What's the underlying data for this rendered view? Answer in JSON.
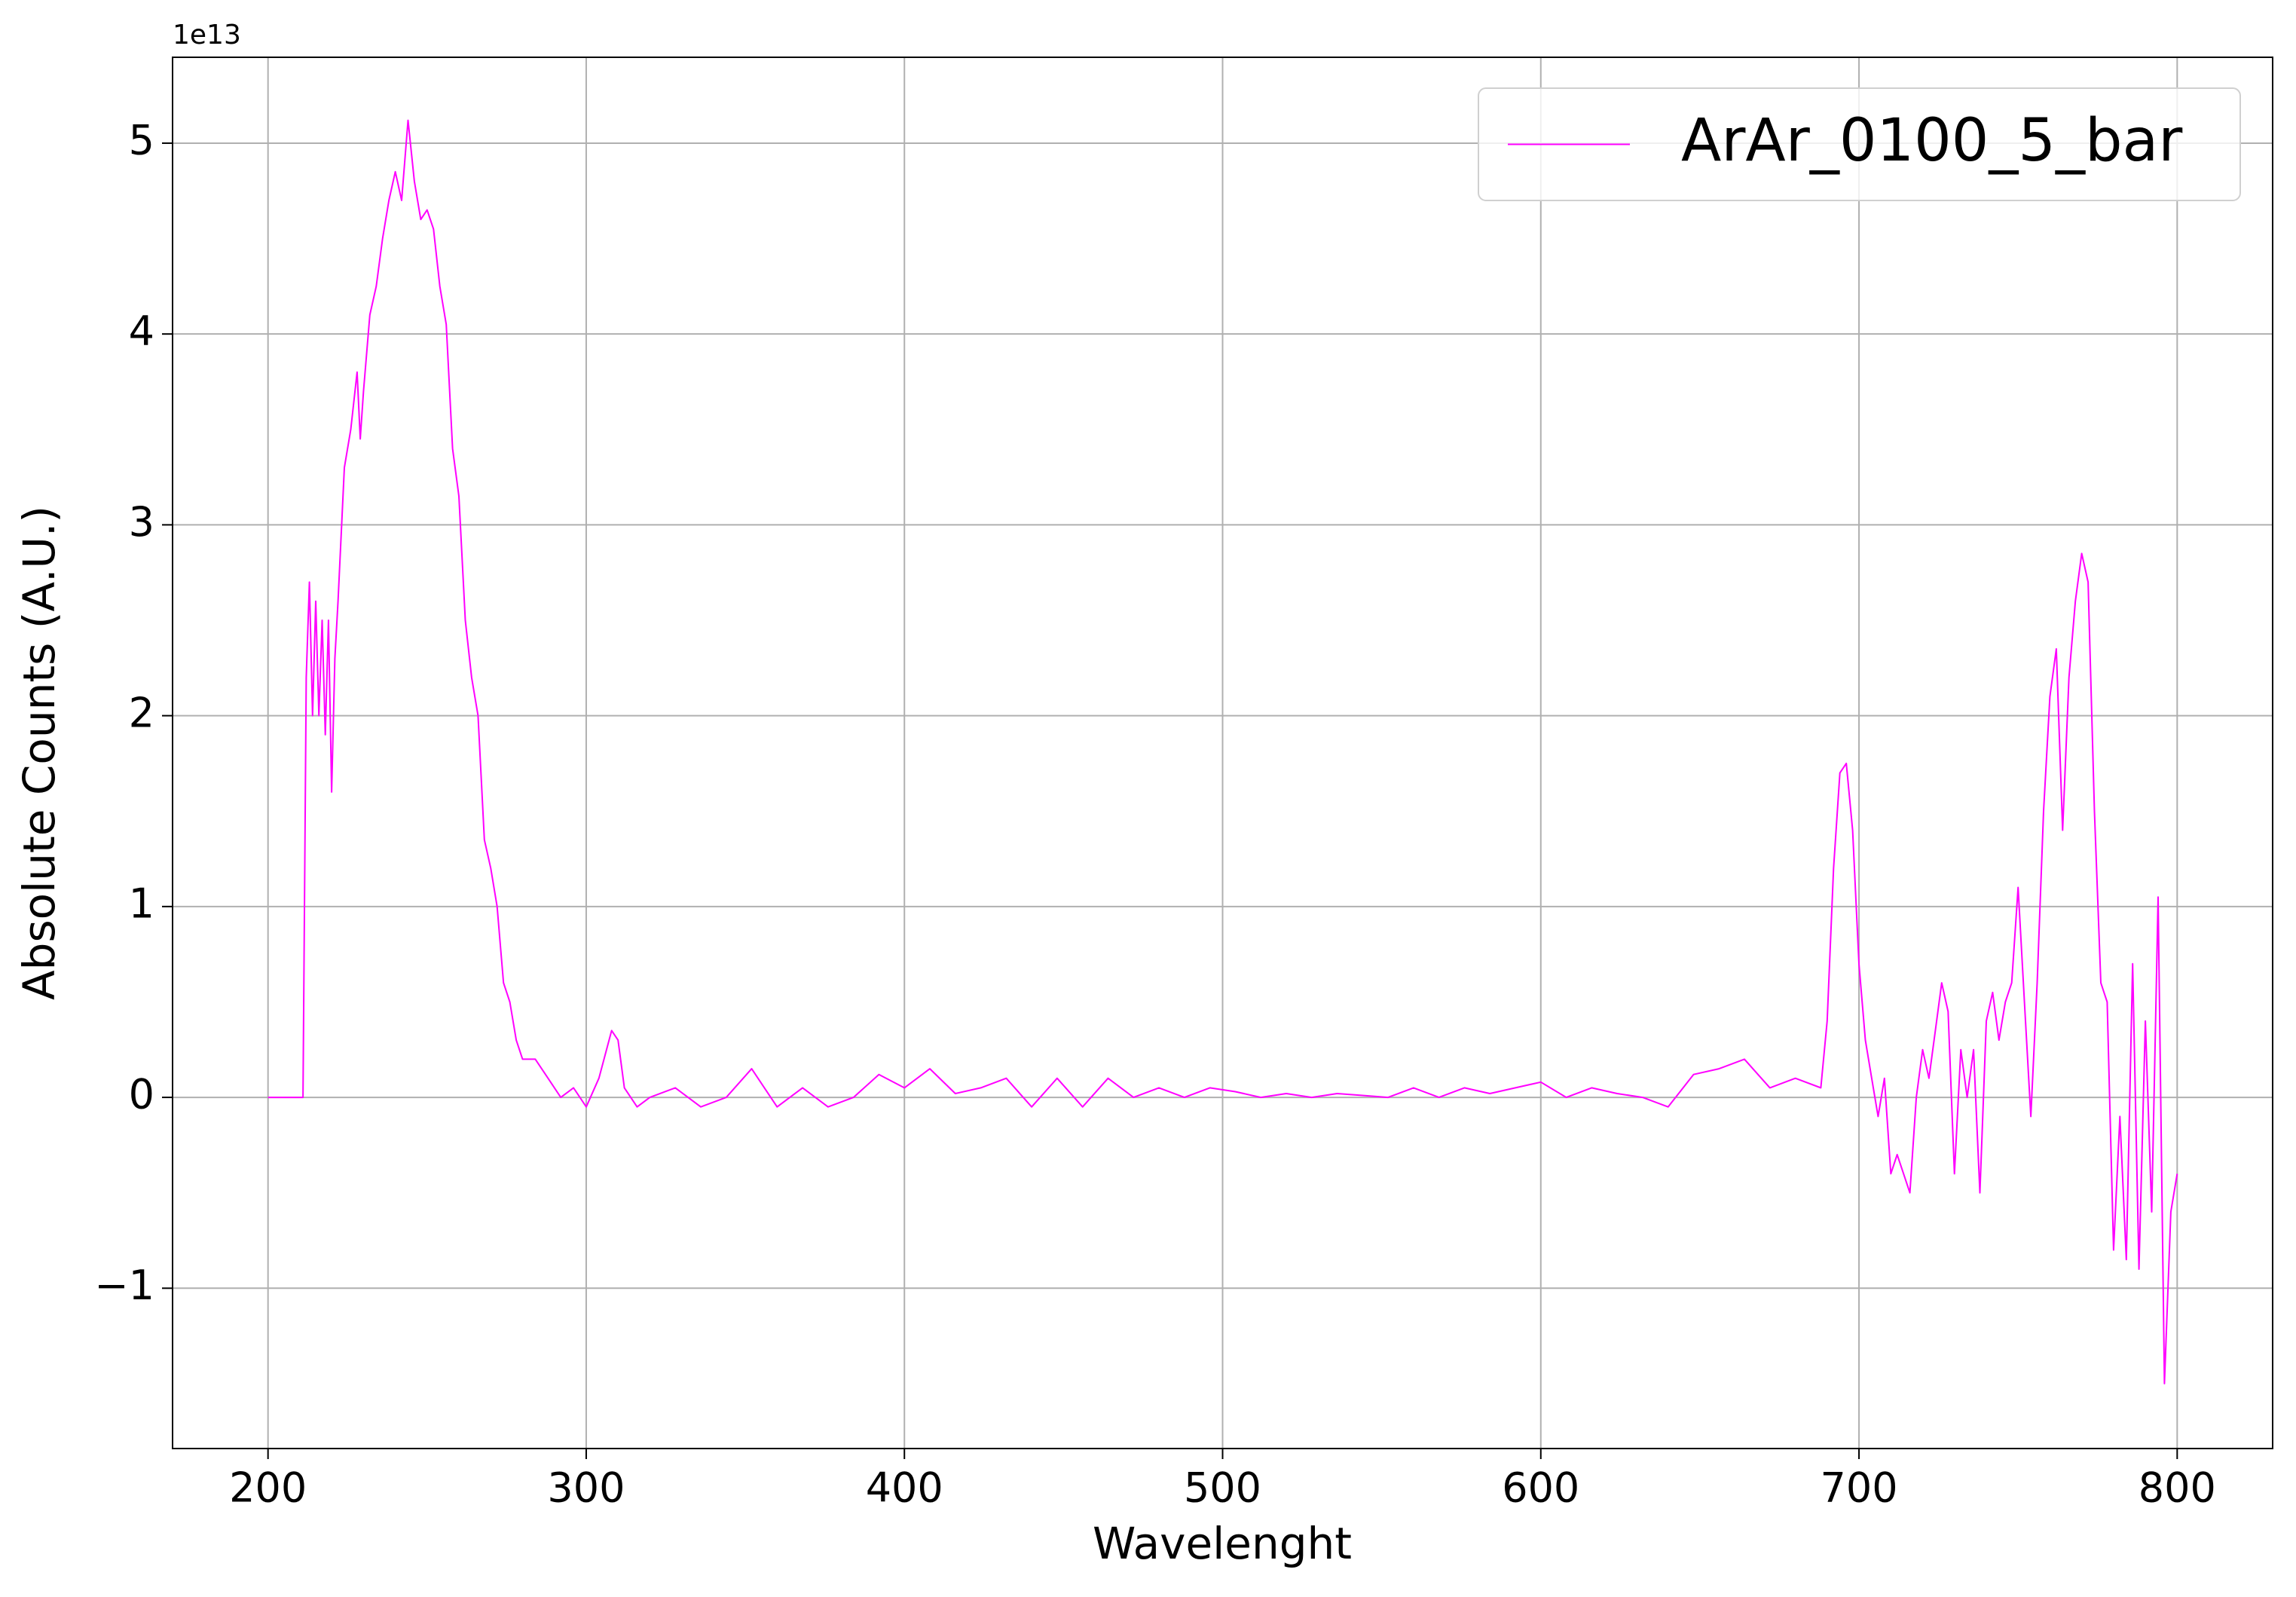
{
  "chart_data": {
    "type": "line",
    "xlabel": "Wavelenght",
    "ylabel": "Absolute Counts (A.U.)",
    "offset_text": "1e13",
    "xlim": [
      170,
      830
    ],
    "ylim": [
      -1.84,
      5.45
    ],
    "xticks": [
      200,
      300,
      400,
      500,
      600,
      700,
      800
    ],
    "yticks": [
      {
        "value": -1,
        "label": "−1"
      },
      0,
      1,
      2,
      3,
      4,
      5
    ],
    "grid": true,
    "legend": "upper right",
    "series": [
      {
        "name": "ArAr_0100_5_bar",
        "color": "#ff00ff",
        "x": [
          200,
          211,
          212,
          213,
          214,
          215,
          216,
          217,
          218,
          219,
          220,
          221,
          222,
          224,
          226,
          228,
          229,
          230,
          232,
          234,
          236,
          238,
          240,
          242,
          244,
          246,
          248,
          250,
          252,
          254,
          256,
          258,
          260,
          262,
          264,
          266,
          268,
          270,
          272,
          274,
          276,
          278,
          280,
          284,
          288,
          292,
          296,
          300,
          304,
          308,
          310,
          312,
          316,
          320,
          328,
          336,
          344,
          352,
          360,
          368,
          376,
          384,
          392,
          400,
          408,
          416,
          424,
          432,
          440,
          448,
          456,
          464,
          472,
          480,
          488,
          496,
          504,
          512,
          520,
          528,
          536,
          544,
          552,
          560,
          568,
          576,
          584,
          592,
          600,
          608,
          616,
          624,
          632,
          640,
          648,
          656,
          664,
          672,
          680,
          688,
          690,
          692,
          694,
          696,
          698,
          700,
          702,
          704,
          706,
          708,
          710,
          712,
          714,
          716,
          718,
          720,
          722,
          724,
          726,
          728,
          730,
          732,
          734,
          736,
          738,
          740,
          742,
          744,
          746,
          748,
          750,
          752,
          754,
          756,
          758,
          760,
          762,
          764,
          766,
          768,
          770,
          772,
          774,
          776,
          778,
          780,
          782,
          784,
          786,
          788,
          790,
          792,
          794,
          796,
          798,
          800
        ],
        "values": [
          0,
          0,
          2.2,
          2.7,
          2.0,
          2.6,
          2.0,
          2.5,
          1.9,
          2.5,
          1.6,
          2.3,
          2.6,
          3.3,
          3.5,
          3.8,
          3.45,
          3.7,
          4.1,
          4.25,
          4.5,
          4.7,
          4.85,
          4.7,
          5.12,
          4.8,
          4.6,
          4.65,
          4.55,
          4.25,
          4.05,
          3.4,
          3.15,
          2.5,
          2.2,
          2.0,
          1.35,
          1.2,
          1.0,
          0.6,
          0.5,
          0.3,
          0.2,
          0.2,
          0.1,
          0.0,
          0.05,
          -0.05,
          0.1,
          0.35,
          0.3,
          0.05,
          -0.05,
          0.0,
          0.05,
          -0.05,
          0.0,
          0.15,
          -0.05,
          0.05,
          -0.05,
          0.0,
          0.12,
          0.05,
          0.15,
          0.02,
          0.05,
          0.1,
          -0.05,
          0.1,
          -0.05,
          0.1,
          0.0,
          0.05,
          0.0,
          0.05,
          0.03,
          0.0,
          0.02,
          0.0,
          0.02,
          0.01,
          0.0,
          0.05,
          0.0,
          0.05,
          0.02,
          0.05,
          0.08,
          0.0,
          0.05,
          0.02,
          0.0,
          -0.05,
          0.12,
          0.15,
          0.2,
          0.05,
          0.1,
          0.05,
          0.4,
          1.2,
          1.7,
          1.75,
          1.4,
          0.7,
          0.3,
          0.1,
          -0.1,
          0.1,
          -0.4,
          -0.3,
          -0.4,
          -0.5,
          0.0,
          0.25,
          0.1,
          0.35,
          0.6,
          0.45,
          -0.4,
          0.25,
          0.0,
          0.25,
          -0.5,
          0.4,
          0.55,
          0.3,
          0.5,
          0.6,
          1.1,
          0.5,
          -0.1,
          0.6,
          1.5,
          2.1,
          2.35,
          1.4,
          2.2,
          2.6,
          2.85,
          2.7,
          1.5,
          0.6,
          0.5,
          -0.8,
          -0.1,
          -0.85,
          0.7,
          -0.9,
          0.4,
          -0.6,
          1.05,
          -1.5,
          -0.6,
          -0.4
        ]
      }
    ]
  }
}
